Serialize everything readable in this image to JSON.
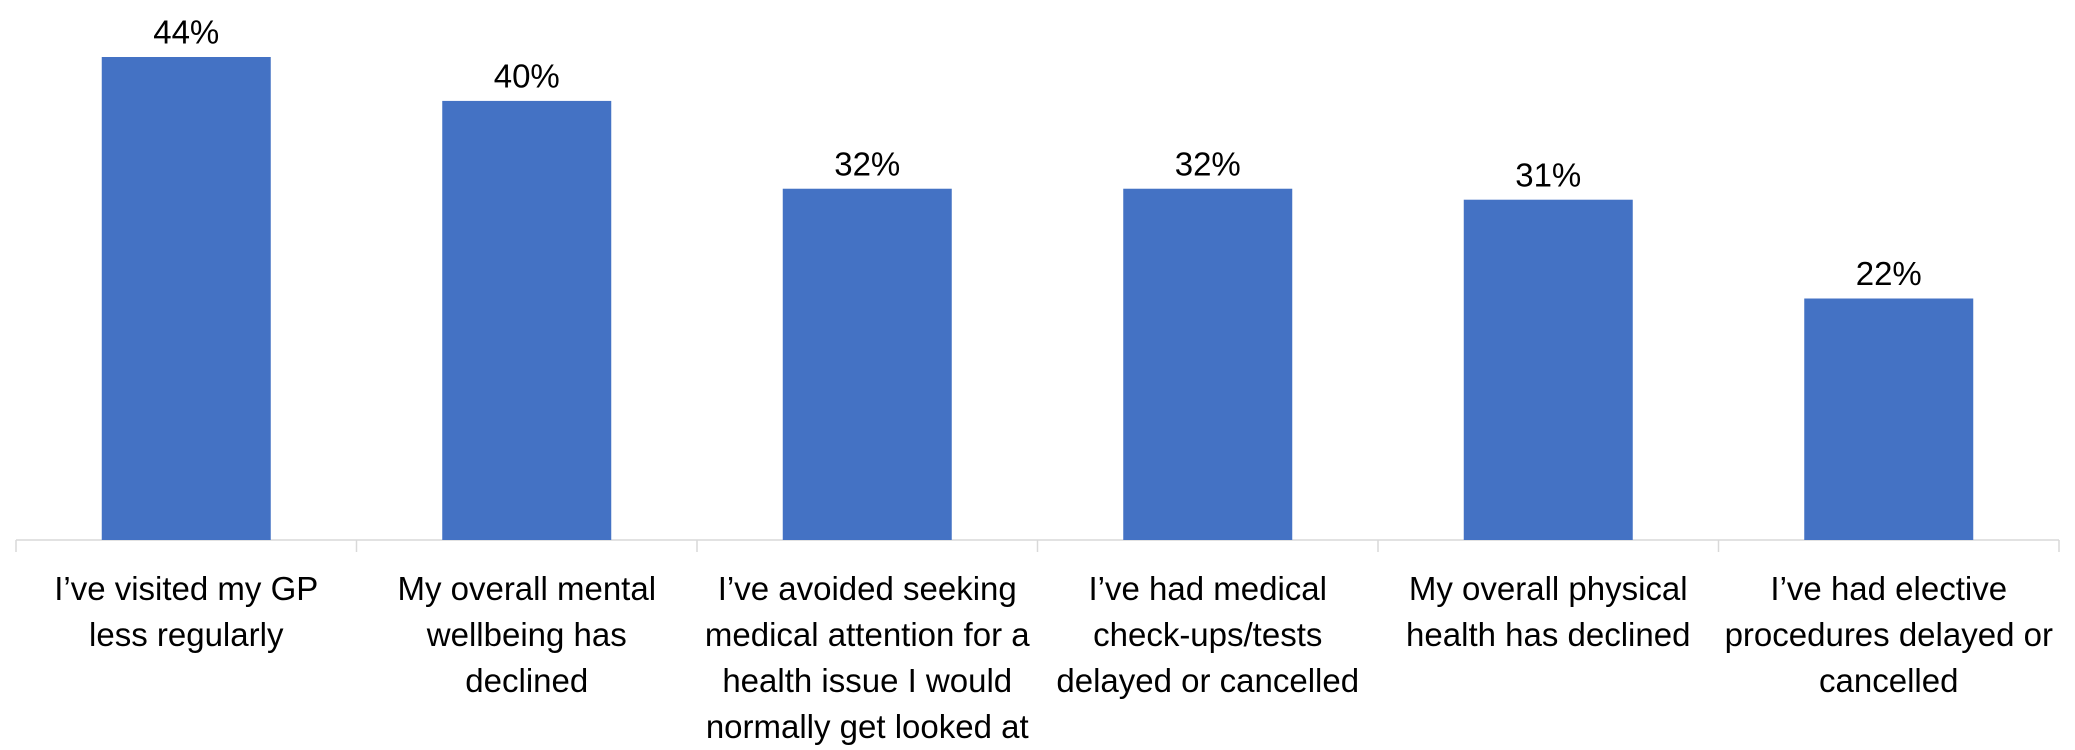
{
  "chart_data": {
    "type": "bar",
    "categories": [
      "I’ve visited my GP less regularly",
      "My overall mental wellbeing has declined",
      "I’ve avoided seeking medical attention for a health issue I would normally get looked at",
      "I’ve had medical check-ups/tests delayed or cancelled",
      "My overall physical health has declined",
      "I’ve had elective procedures delayed or cancelled"
    ],
    "values": [
      44,
      40,
      32,
      32,
      31,
      22
    ],
    "value_labels": [
      "44%",
      "40%",
      "32%",
      "32%",
      "31%",
      "22%"
    ],
    "color": "#4472c4"
  }
}
